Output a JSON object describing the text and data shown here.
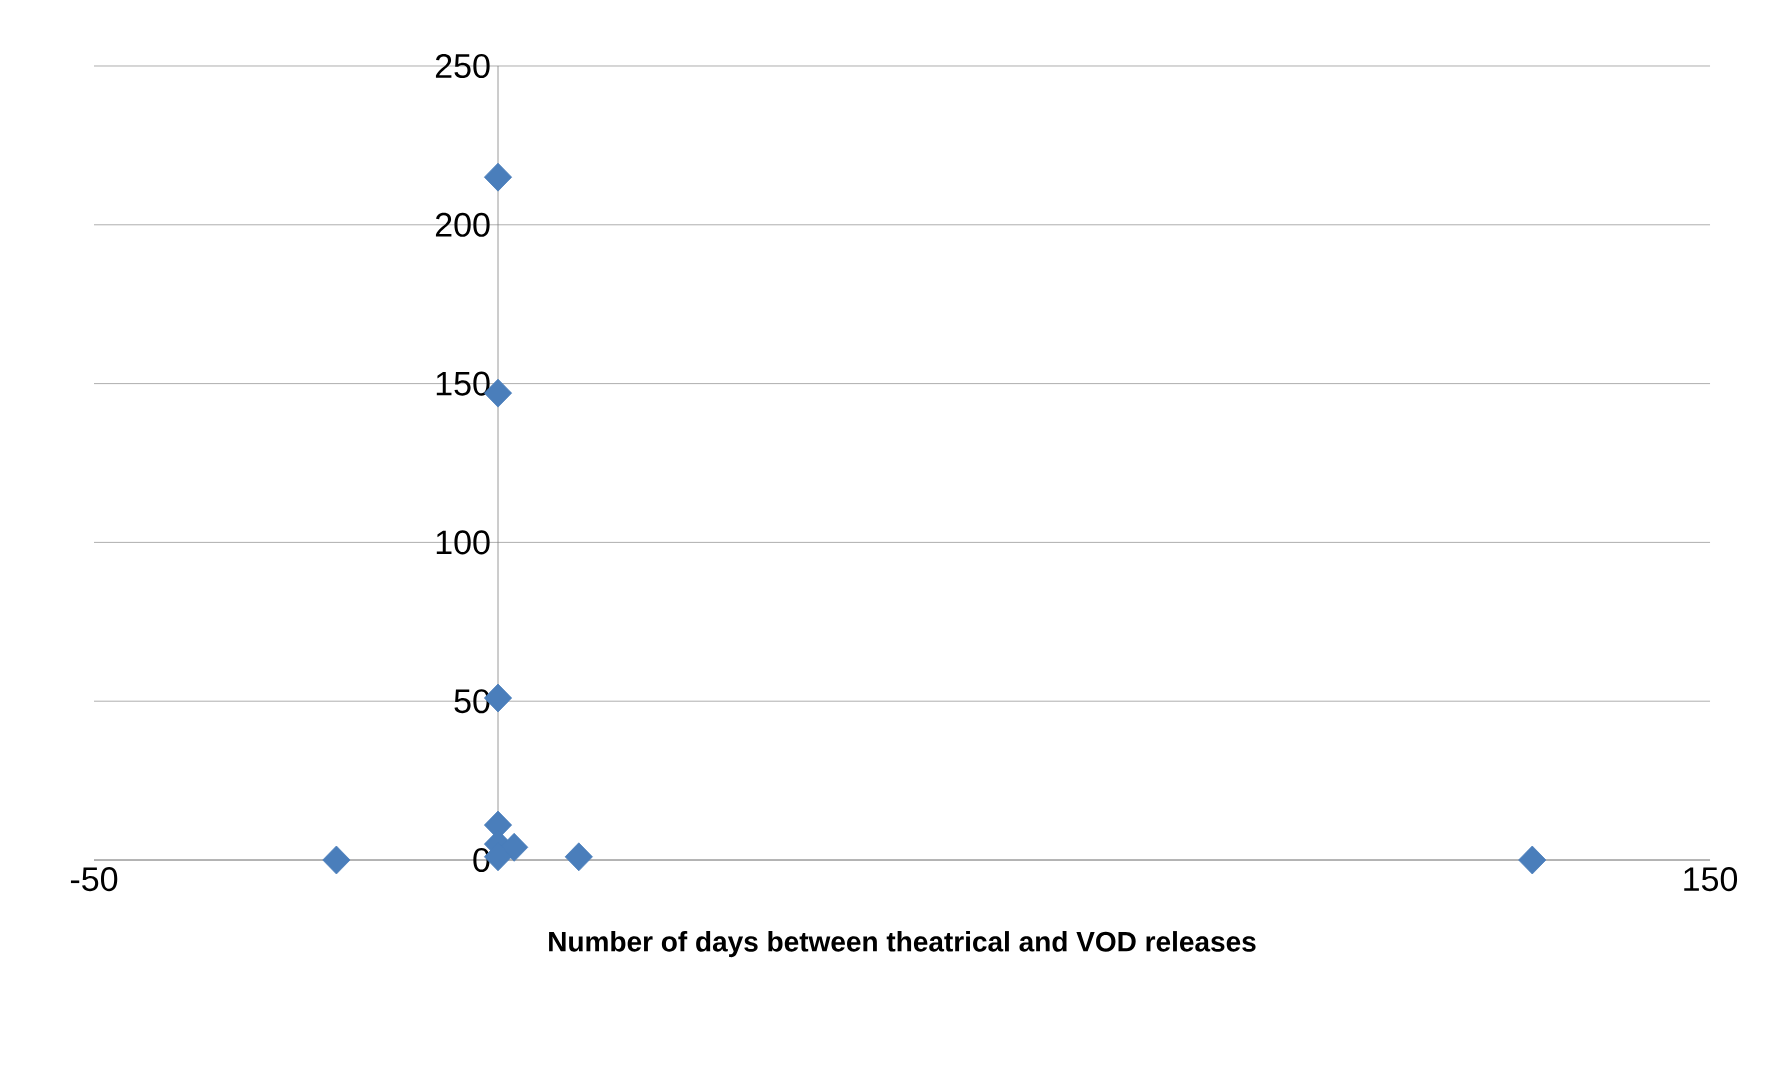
{
  "chart_data": {
    "type": "scatter",
    "xlabel": "**Number of days between theatrical and VOD releases**",
    "x": [
      -20,
      0,
      0,
      0,
      0,
      0,
      2,
      0,
      10,
      128
    ],
    "values": [
      0,
      215,
      147,
      51,
      11,
      5,
      4,
      1,
      1,
      0
    ],
    "color": "#4a7ebb",
    "marker": "diamond",
    "xlim": [
      -50,
      150
    ],
    "xticks": [
      -50,
      150
    ],
    "ylim": [
      0,
      250
    ],
    "yticks": [
      0,
      50,
      100,
      150,
      200,
      250
    ],
    "grid": "y"
  }
}
